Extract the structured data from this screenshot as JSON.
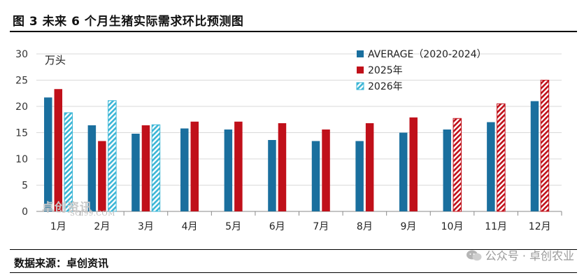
{
  "header": {
    "title": "图 3  未来 6 个月生猪实际需求环比预测图"
  },
  "footer": {
    "source": "数据来源：卓创资讯",
    "watermark": "公众号 · 卓创农业"
  },
  "stamp": {
    "text": "卓创资讯",
    "sub": "SCI99.COM"
  },
  "colors": {
    "avg": "#1a6f9e",
    "y2025": "#c0101a",
    "y2026": "#3bb6d6",
    "grid": "#d9d9d9"
  },
  "chart_data": {
    "type": "bar",
    "ylabel": "万头",
    "ylim": [
      0,
      30
    ],
    "yticks": [
      0,
      5,
      10,
      15,
      20,
      25,
      30
    ],
    "categories": [
      "1月",
      "2月",
      "3月",
      "4月",
      "5月",
      "6月",
      "7月",
      "8月",
      "9月",
      "10月",
      "11月",
      "12月"
    ],
    "series": [
      {
        "name": "AVERAGE（2020-2024）",
        "values": [
          21.7,
          16.4,
          14.8,
          15.8,
          15.6,
          13.6,
          13.4,
          13.4,
          15.0,
          15.6,
          17.0,
          21.0
        ],
        "style": "solid",
        "color": "#1a6f9e"
      },
      {
        "name": "2025年",
        "values": [
          23.3,
          13.4,
          16.4,
          17.1,
          17.1,
          16.8,
          15.6,
          16.8,
          17.9,
          17.7,
          20.5,
          25.0
        ],
        "style": "solid-then-hatched",
        "hatched_from_index": 9,
        "color": "#c0101a"
      },
      {
        "name": "2026年",
        "values": [
          18.8,
          21.1,
          16.5,
          null,
          null,
          null,
          null,
          null,
          null,
          null,
          null,
          null
        ],
        "style": "hatched",
        "color": "#3bb6d6"
      }
    ],
    "legend_position": "top-right"
  }
}
